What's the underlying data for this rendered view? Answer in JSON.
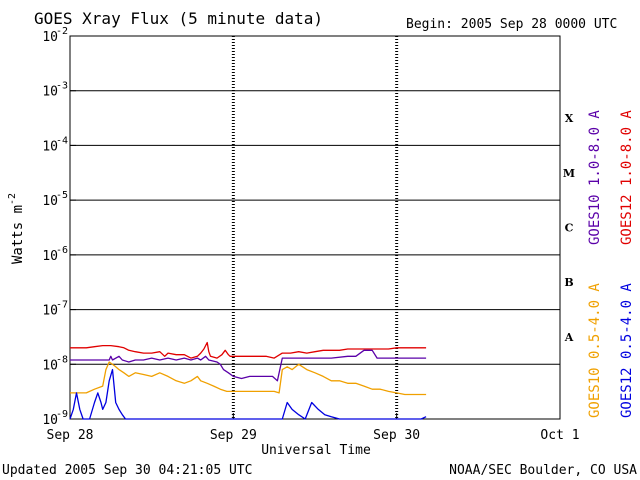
{
  "chart_data": {
    "type": "line",
    "title": "GOES Xray Flux (5 minute data)",
    "begin_label": "Begin:  2005 Sep 28 0000 UTC",
    "xlabel": "Universal Time",
    "ylabel": "Watts m",
    "ylabel_sup": "-2",
    "yscale": "log",
    "ylim": [
      1e-09,
      0.01
    ],
    "y_ticks": [
      {
        "base": "10",
        "exp": "-2"
      },
      {
        "base": "10",
        "exp": "-3"
      },
      {
        "base": "10",
        "exp": "-4"
      },
      {
        "base": "10",
        "exp": "-5"
      },
      {
        "base": "10",
        "exp": "-6"
      },
      {
        "base": "10",
        "exp": "-7"
      },
      {
        "base": "10",
        "exp": "-8"
      },
      {
        "base": "10",
        "exp": "-9"
      }
    ],
    "x_unit": "days since 2005 Sep 28 0000 UTC",
    "xlim": [
      0,
      3
    ],
    "x_ticks": [
      "Sep 28",
      "Sep 29",
      "Sep 30",
      "Oct 1"
    ],
    "flare_classes": [
      "X",
      "M",
      "C",
      "B",
      "A"
    ],
    "grid": "horizontal at each decade, dashed verticals at day boundaries",
    "series": [
      {
        "name": "GOES12 1.0-8.0 A",
        "color": "#e00000",
        "points": [
          [
            0,
            2e-08
          ],
          [
            0.05,
            2e-08
          ],
          [
            0.1,
            2e-08
          ],
          [
            0.15,
            2.1e-08
          ],
          [
            0.2,
            2.2e-08
          ],
          [
            0.25,
            2.2e-08
          ],
          [
            0.3,
            2.1e-08
          ],
          [
            0.33,
            2e-08
          ],
          [
            0.36,
            1.8e-08
          ],
          [
            0.4,
            1.7e-08
          ],
          [
            0.45,
            1.6e-08
          ],
          [
            0.5,
            1.6e-08
          ],
          [
            0.55,
            1.7e-08
          ],
          [
            0.58,
            1.4e-08
          ],
          [
            0.6,
            1.6e-08
          ],
          [
            0.65,
            1.5e-08
          ],
          [
            0.7,
            1.5e-08
          ],
          [
            0.74,
            1.3e-08
          ],
          [
            0.78,
            1.4e-08
          ],
          [
            0.8,
            1.6e-08
          ],
          [
            0.82,
            1.9e-08
          ],
          [
            0.84,
            2.5e-08
          ],
          [
            0.85,
            1.7e-08
          ],
          [
            0.86,
            1.4e-08
          ],
          [
            0.9,
            1.3e-08
          ],
          [
            0.93,
            1.5e-08
          ],
          [
            0.95,
            1.8e-08
          ],
          [
            0.97,
            1.5e-08
          ],
          [
            0.98,
            1.4e-08
          ],
          [
            1.0,
            1.4e-08
          ],
          [
            1.05,
            1.4e-08
          ],
          [
            1.1,
            1.4e-08
          ],
          [
            1.15,
            1.4e-08
          ],
          [
            1.2,
            1.4e-08
          ],
          [
            1.25,
            1.3e-08
          ],
          [
            1.3,
            1.6e-08
          ],
          [
            1.35,
            1.6e-08
          ],
          [
            1.4,
            1.7e-08
          ],
          [
            1.45,
            1.6e-08
          ],
          [
            1.5,
            1.7e-08
          ],
          [
            1.55,
            1.8e-08
          ],
          [
            1.6,
            1.8e-08
          ],
          [
            1.65,
            1.8e-08
          ],
          [
            1.7,
            1.9e-08
          ],
          [
            1.75,
            1.9e-08
          ],
          [
            1.8,
            1.9e-08
          ],
          [
            1.85,
            1.9e-08
          ],
          [
            1.9,
            1.9e-08
          ],
          [
            1.95,
            1.9e-08
          ],
          [
            2.0,
            2e-08
          ],
          [
            2.05,
            2e-08
          ],
          [
            2.1,
            2e-08
          ],
          [
            2.15,
            2e-08
          ],
          [
            2.18,
            2e-08
          ]
        ]
      },
      {
        "name": "GOES10 1.0-8.0 A",
        "color": "#5a00a8",
        "points": [
          [
            0,
            1.2e-08
          ],
          [
            0.1,
            1.2e-08
          ],
          [
            0.2,
            1.2e-08
          ],
          [
            0.24,
            1.2e-08
          ],
          [
            0.25,
            1.4e-08
          ],
          [
            0.26,
            1.2e-08
          ],
          [
            0.3,
            1.4e-08
          ],
          [
            0.32,
            1.2e-08
          ],
          [
            0.36,
            1.1e-08
          ],
          [
            0.4,
            1.2e-08
          ],
          [
            0.45,
            1.2e-08
          ],
          [
            0.5,
            1.3e-08
          ],
          [
            0.55,
            1.2e-08
          ],
          [
            0.6,
            1.3e-08
          ],
          [
            0.65,
            1.2e-08
          ],
          [
            0.7,
            1.3e-08
          ],
          [
            0.74,
            1.2e-08
          ],
          [
            0.78,
            1.3e-08
          ],
          [
            0.8,
            1.2e-08
          ],
          [
            0.83,
            1.4e-08
          ],
          [
            0.85,
            1.2e-08
          ],
          [
            0.9,
            1.1e-08
          ],
          [
            0.92,
            1e-08
          ],
          [
            0.94,
            8e-09
          ],
          [
            0.97,
            7e-09
          ],
          [
            1.0,
            6e-09
          ],
          [
            1.05,
            5.5e-09
          ],
          [
            1.1,
            6e-09
          ],
          [
            1.15,
            6e-09
          ],
          [
            1.2,
            6e-09
          ],
          [
            1.24,
            6e-09
          ],
          [
            1.27,
            5e-09
          ],
          [
            1.3,
            1.3e-08
          ],
          [
            1.35,
            1.3e-08
          ],
          [
            1.4,
            1.3e-08
          ],
          [
            1.45,
            1.3e-08
          ],
          [
            1.5,
            1.3e-08
          ],
          [
            1.55,
            1.3e-08
          ],
          [
            1.6,
            1.3e-08
          ],
          [
            1.7,
            1.4e-08
          ],
          [
            1.75,
            1.4e-08
          ],
          [
            1.8,
            1.8e-08
          ],
          [
            1.85,
            1.8e-08
          ],
          [
            1.88,
            1.3e-08
          ],
          [
            1.9,
            1.3e-08
          ],
          [
            1.95,
            1.3e-08
          ],
          [
            2.0,
            1.3e-08
          ],
          [
            2.05,
            1.3e-08
          ],
          [
            2.1,
            1.3e-08
          ],
          [
            2.18,
            1.3e-08
          ]
        ]
      },
      {
        "name": "GOES10 0.5-4.0 A",
        "color": "#f0a000",
        "points": [
          [
            0,
            3e-09
          ],
          [
            0.05,
            3e-09
          ],
          [
            0.1,
            3e-09
          ],
          [
            0.15,
            3.5e-09
          ],
          [
            0.2,
            4e-09
          ],
          [
            0.22,
            8e-09
          ],
          [
            0.24,
            1.1e-08
          ],
          [
            0.26,
            1e-08
          ],
          [
            0.28,
            9e-09
          ],
          [
            0.3,
            8e-09
          ],
          [
            0.33,
            7e-09
          ],
          [
            0.36,
            6e-09
          ],
          [
            0.4,
            7e-09
          ],
          [
            0.45,
            6.5e-09
          ],
          [
            0.5,
            6e-09
          ],
          [
            0.55,
            7e-09
          ],
          [
            0.6,
            6e-09
          ],
          [
            0.65,
            5e-09
          ],
          [
            0.7,
            4.5e-09
          ],
          [
            0.74,
            5e-09
          ],
          [
            0.78,
            6e-09
          ],
          [
            0.8,
            5e-09
          ],
          [
            0.84,
            4.5e-09
          ],
          [
            0.88,
            4e-09
          ],
          [
            0.92,
            3.5e-09
          ],
          [
            0.96,
            3.2e-09
          ],
          [
            1.0,
            3.2e-09
          ],
          [
            1.05,
            3.2e-09
          ],
          [
            1.1,
            3.2e-09
          ],
          [
            1.15,
            3.2e-09
          ],
          [
            1.2,
            3.2e-09
          ],
          [
            1.25,
            3.2e-09
          ],
          [
            1.28,
            3e-09
          ],
          [
            1.3,
            8e-09
          ],
          [
            1.33,
            9e-09
          ],
          [
            1.36,
            8e-09
          ],
          [
            1.4,
            1e-08
          ],
          [
            1.45,
            8e-09
          ],
          [
            1.5,
            7e-09
          ],
          [
            1.55,
            6e-09
          ],
          [
            1.6,
            5e-09
          ],
          [
            1.65,
            5e-09
          ],
          [
            1.7,
            4.5e-09
          ],
          [
            1.75,
            4.5e-09
          ],
          [
            1.8,
            4e-09
          ],
          [
            1.85,
            3.5e-09
          ],
          [
            1.9,
            3.5e-09
          ],
          [
            1.95,
            3.2e-09
          ],
          [
            2.0,
            3e-09
          ],
          [
            2.05,
            2.8e-09
          ],
          [
            2.1,
            2.8e-09
          ],
          [
            2.18,
            2.8e-09
          ]
        ]
      },
      {
        "name": "GOES12 0.5-4.0 A",
        "color": "#0000e0",
        "points": [
          [
            0,
            1e-09
          ],
          [
            0.02,
            1.5e-09
          ],
          [
            0.04,
            3e-09
          ],
          [
            0.06,
            1.5e-09
          ],
          [
            0.08,
            1e-09
          ],
          [
            0.1,
            1e-09
          ],
          [
            0.12,
            1e-09
          ],
          [
            0.15,
            2e-09
          ],
          [
            0.17,
            3e-09
          ],
          [
            0.19,
            2e-09
          ],
          [
            0.2,
            1.5e-09
          ],
          [
            0.22,
            2e-09
          ],
          [
            0.24,
            5e-09
          ],
          [
            0.26,
            8e-09
          ],
          [
            0.27,
            4e-09
          ],
          [
            0.28,
            2e-09
          ],
          [
            0.3,
            1.5e-09
          ],
          [
            0.32,
            1.2e-09
          ],
          [
            0.34,
            1e-09
          ],
          [
            0.36,
            1e-09
          ],
          [
            0.4,
            1e-09
          ],
          [
            0.45,
            1e-09
          ],
          [
            0.5,
            1e-09
          ],
          [
            0.55,
            1e-09
          ],
          [
            0.6,
            1e-09
          ],
          [
            0.65,
            1e-09
          ],
          [
            0.7,
            1e-09
          ],
          [
            0.75,
            1e-09
          ],
          [
            0.8,
            1e-09
          ],
          [
            0.85,
            1e-09
          ],
          [
            0.9,
            1e-09
          ],
          [
            1.3,
            1e-09
          ],
          [
            1.33,
            2e-09
          ],
          [
            1.36,
            1.5e-09
          ],
          [
            1.4,
            1.2e-09
          ],
          [
            1.44,
            1e-09
          ],
          [
            1.48,
            2e-09
          ],
          [
            1.52,
            1.5e-09
          ],
          [
            1.56,
            1.2e-09
          ],
          [
            1.6,
            1.1e-09
          ],
          [
            1.65,
            1e-09
          ],
          [
            1.7,
            1e-09
          ],
          [
            1.75,
            1e-09
          ],
          [
            1.8,
            1e-09
          ],
          [
            1.85,
            1e-09
          ],
          [
            1.9,
            1e-09
          ],
          [
            1.95,
            1e-09
          ],
          [
            2.0,
            1e-09
          ],
          [
            2.05,
            1e-09
          ],
          [
            2.1,
            1e-09
          ],
          [
            2.15,
            1e-09
          ],
          [
            2.18,
            1.1e-09
          ]
        ]
      }
    ],
    "right_legend": [
      {
        "text": "GOES10 1.0-8.0 A",
        "color": "#5a00a8"
      },
      {
        "text": "GOES12 1.0-8.0 A",
        "color": "#e00000"
      },
      {
        "text": "GOES10 0.5-4.0 A",
        "color": "#f0a000"
      },
      {
        "text": "GOES12 0.5-4.0 A",
        "color": "#0000e0"
      }
    ]
  },
  "footer": {
    "updated": "Updated 2005 Sep 30 04:21:05 UTC",
    "source": "NOAA/SEC Boulder, CO USA"
  }
}
